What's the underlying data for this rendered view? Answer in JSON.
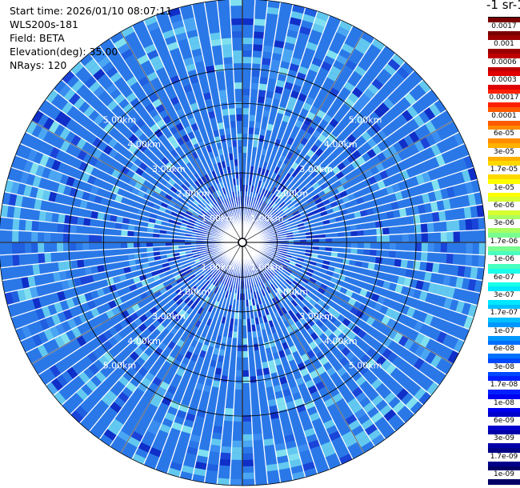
{
  "header": {
    "start_time": "Start time: 2026/01/10 08:07:11",
    "instrument": "WLS200s-181",
    "field": "Field: BETA",
    "elevation": "Elevation(deg): 35.00",
    "nrays": "NRays: 120"
  },
  "colorbar": {
    "title": "-1 sr-1",
    "labels": [
      "0.0017",
      "0.001",
      "0.0006",
      "0.0003",
      "0.00017",
      "0.0001",
      "6e-05",
      "3e-05",
      "1.7e-05",
      "1e-05",
      "6e-06",
      "3e-06",
      "1.7e-06",
      "1e-06",
      "6e-07",
      "3e-07",
      "1.7e-07",
      "1e-07",
      "6e-08",
      "3e-08",
      "1.7e-08",
      "1e-08",
      "6e-09",
      "3e-09",
      "1.7e-09",
      "1e-09"
    ],
    "colors": [
      "#7a0000",
      "#9a0000",
      "#c00000",
      "#e00000",
      "#ff2000",
      "#ff5a00",
      "#ff8c00",
      "#ffb000",
      "#ffd800",
      "#ffff00",
      "#d8ff30",
      "#a8ff60",
      "#78ff90",
      "#48ffc0",
      "#18ffe8",
      "#00e8ff",
      "#00c0ff",
      "#0098ff",
      "#0070ff",
      "#0048ff",
      "#0020ff",
      "#0000f0",
      "#0000cc",
      "#0000a8",
      "#000088",
      "#000066"
    ]
  },
  "chart_data": {
    "type": "heatmap",
    "projection": "polar-ppi",
    "n_rays": 120,
    "range_rings_km": [
      1,
      2,
      3,
      4,
      5
    ],
    "ring_labels": [
      "1.00km",
      "2.00km",
      "3.00km",
      "4.00km",
      "5.00km"
    ],
    "max_range_km": 7.0,
    "field": "BETA",
    "elevation_deg": 35.0,
    "scale": "log",
    "value_range": [
      1e-09,
      0.0017
    ]
  }
}
